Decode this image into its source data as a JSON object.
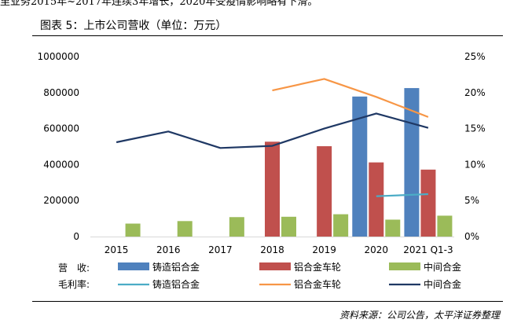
{
  "header_clip": "里业务2015年~2017年连续3年增长，2020年受疫情影响略有下滑。",
  "title": "图表 5：上市公司营收（单位：万元）",
  "source": "资料来源：公司公告，太平洋证券整理",
  "legend": {
    "row1_label": "营　收:",
    "row2_label": "毛利率:"
  },
  "chart_data": {
    "type": "bar",
    "title": "图表 5：上市公司营收（单位：万元）",
    "categories": [
      "2015",
      "2016",
      "2017",
      "2018",
      "2019",
      "2020",
      "2021 Q1-3"
    ],
    "ylim": [
      0,
      1000000
    ],
    "y2lim": [
      0,
      25
    ],
    "y_ticks": [
      "0",
      "200000",
      "400000",
      "600000",
      "800000",
      "1000000"
    ],
    "y2_ticks": [
      "0%",
      "5%",
      "10%",
      "15%",
      "20%",
      "25%"
    ],
    "series": [
      {
        "name": "铸造铝合金",
        "kind": "bar",
        "color": "#4F81BD",
        "values": [
          null,
          null,
          null,
          null,
          null,
          778000,
          825000
        ]
      },
      {
        "name": "铝合金车轮",
        "kind": "bar",
        "color": "#C0504D",
        "values": [
          null,
          null,
          null,
          527000,
          502000,
          412000,
          372000
        ]
      },
      {
        "name": "中间合金",
        "kind": "bar",
        "color": "#9BBB59",
        "values": [
          72000,
          86000,
          108000,
          110000,
          124000,
          94000,
          116000
        ]
      }
    ],
    "line_series": [
      {
        "name": "铸造铝合金",
        "color": "#4BACC6",
        "values": [
          null,
          null,
          null,
          null,
          null,
          5.6,
          5.9
        ]
      },
      {
        "name": "铝合金车轮",
        "color": "#F79646",
        "values": [
          null,
          null,
          null,
          20.3,
          21.9,
          19.4,
          16.6
        ]
      },
      {
        "name": "中间合金",
        "color": "#1F3864",
        "values": [
          13.1,
          14.6,
          12.3,
          12.6,
          15.0,
          17.1,
          15.1
        ]
      }
    ]
  }
}
